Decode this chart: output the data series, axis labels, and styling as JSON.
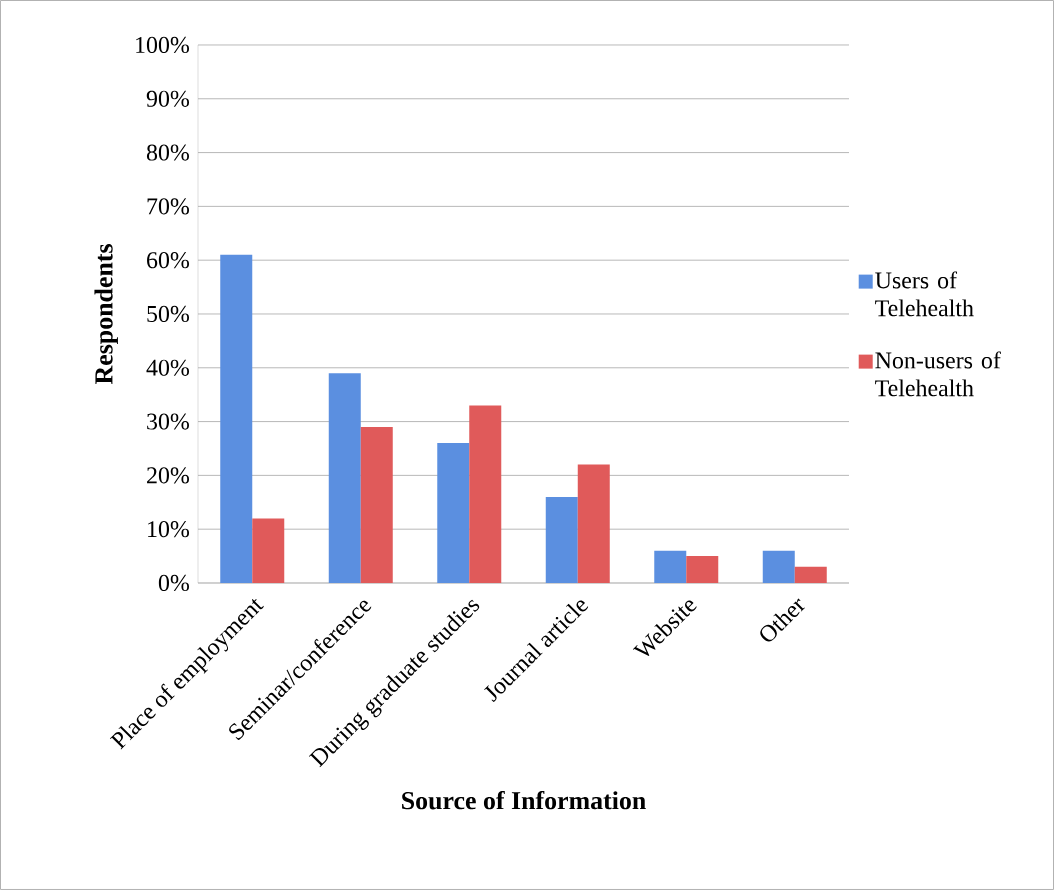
{
  "chart_data": {
    "type": "bar",
    "xlabel": "Source of Information",
    "ylabel": "Respondents",
    "categories": [
      "Place of employment",
      "Seminar/conference",
      "During graduate studies",
      "Journal article",
      "Website",
      "Other"
    ],
    "series": [
      {
        "name": "Users of Telehealth",
        "color": "#5b8fe0",
        "values": [
          61,
          39,
          26,
          16,
          6,
          6
        ]
      },
      {
        "name": "Non-users of Telehealth",
        "color": "#e05a5a",
        "values": [
          12,
          29,
          33,
          22,
          5,
          3
        ]
      }
    ],
    "ylim": [
      0,
      100
    ],
    "yticks": [
      {
        "value": 0,
        "label": "0%"
      },
      {
        "value": 10,
        "label": "10%"
      },
      {
        "value": 20,
        "label": "20%"
      },
      {
        "value": 30,
        "label": "30%"
      },
      {
        "value": 40,
        "label": "40%"
      },
      {
        "value": 50,
        "label": "50%"
      },
      {
        "value": 60,
        "label": "60%"
      },
      {
        "value": 70,
        "label": "70%"
      },
      {
        "value": 80,
        "label": "80%"
      },
      {
        "value": 90,
        "label": "90%"
      },
      {
        "value": 100,
        "label": "100%"
      }
    ],
    "grid": "y",
    "legend": "right"
  }
}
